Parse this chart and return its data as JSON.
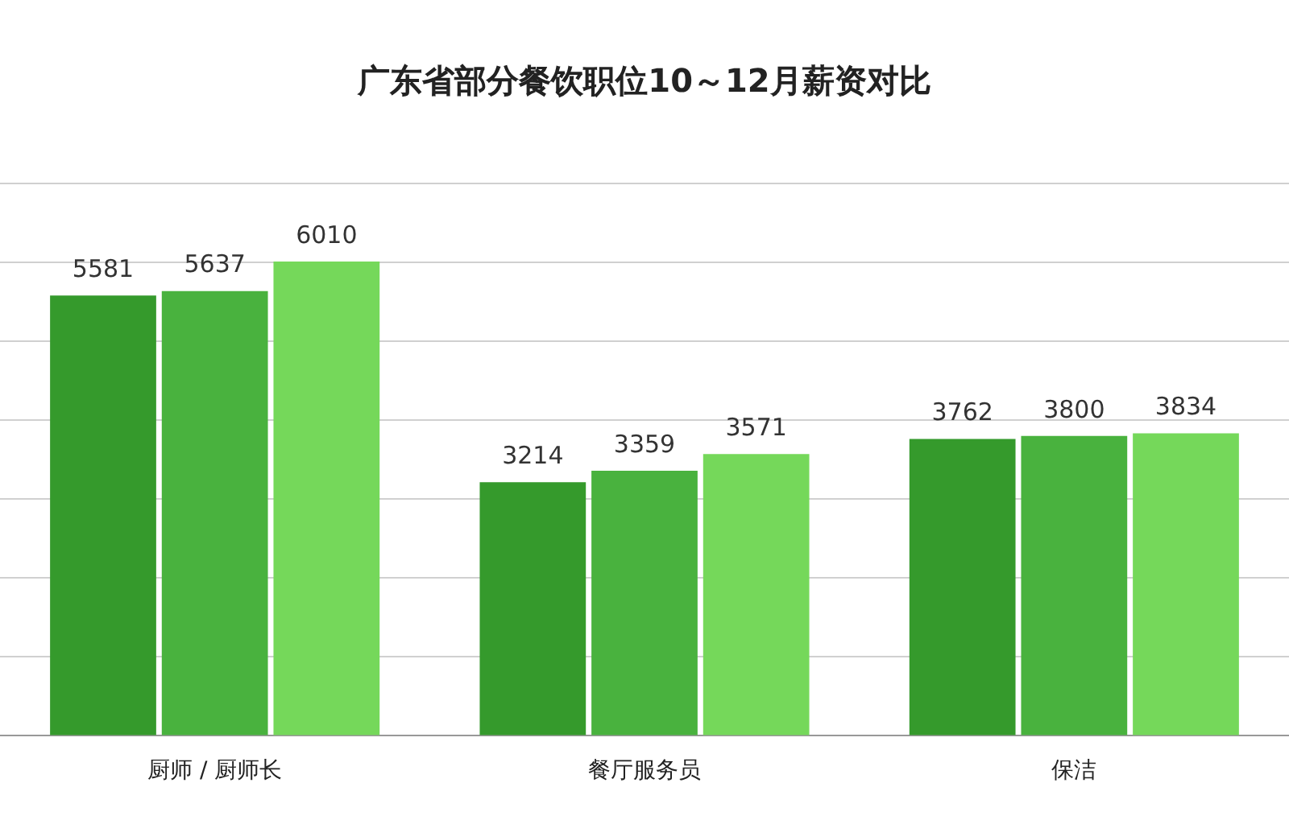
{
  "chart_data": {
    "type": "bar",
    "title": "广东省部分餐饮职位10～12月薪资对比",
    "categories": [
      "厨师 / 厨师长",
      "餐厅服务员",
      "保洁"
    ],
    "series": [
      {
        "color": "#359a2c",
        "values": [
          5581,
          3214,
          3762
        ]
      },
      {
        "color": "#49b23e",
        "values": [
          5637,
          3359,
          3800
        ]
      },
      {
        "color": "#75d85a",
        "values": [
          6010,
          3571,
          3834
        ]
      }
    ],
    "ylim": [
      0,
      7000
    ],
    "yticks": [
      {
        "value": 0,
        "label": null
      },
      {
        "value": 1000,
        "label": null
      },
      {
        "value": 2000,
        "label": null
      },
      {
        "value": 3000,
        "label": null
      },
      {
        "value": 4000,
        "label": null
      },
      {
        "value": 5000,
        "label": null
      },
      {
        "value": 6000,
        "label": null
      },
      {
        "value": 7000,
        "label": null
      }
    ],
    "tick_labels": "x",
    "grid": "y",
    "legend": false,
    "data_labels": true
  }
}
